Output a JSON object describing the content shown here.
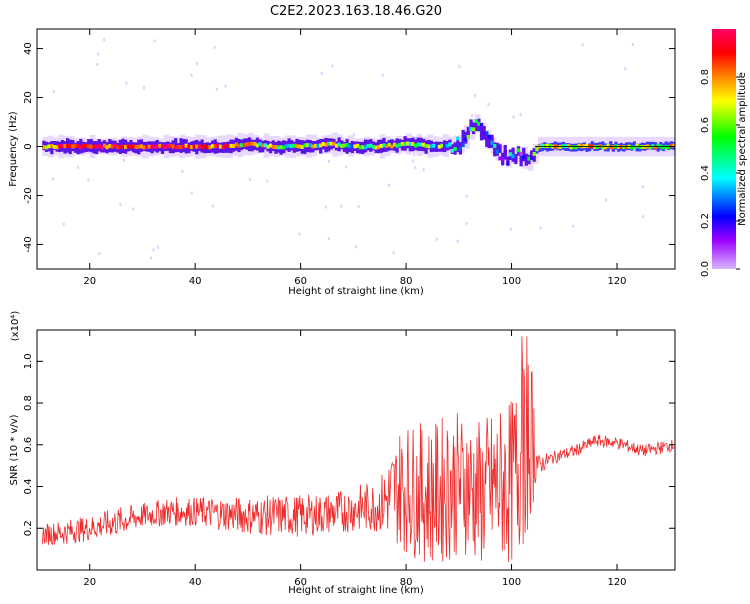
{
  "title": "C2E2.2023.163.18.46.G20",
  "chart_data": [
    {
      "type": "heatmap",
      "title": "C2E2.2023.163.18.46.G20",
      "xlabel": "Height of straight line (km)",
      "ylabel": "Frequency (Hz)",
      "xlim": [
        10,
        131
      ],
      "ylim": [
        -50,
        48
      ],
      "xticks": [
        20,
        40,
        60,
        80,
        100,
        120
      ],
      "yticks": [
        -40,
        -20,
        0,
        20,
        40
      ],
      "colorbar": {
        "label": "Normalized spectral amplitude",
        "range": [
          0,
          1
        ],
        "ticks": [
          0.0,
          0.2,
          0.4,
          0.6,
          0.8
        ],
        "colormap": [
          "#d7b7ff",
          "#9b00ff",
          "#0000ff",
          "#00ffff",
          "#00ff00",
          "#ffff00",
          "#ff8800",
          "#ff0000",
          "#ff0066"
        ]
      },
      "ridge": {
        "x": [
          11,
          15,
          20,
          25,
          30,
          35,
          40,
          45,
          50,
          55,
          60,
          65,
          70,
          75,
          80,
          85,
          90,
          93,
          95,
          97,
          99,
          101,
          103,
          105,
          110,
          120,
          131
        ],
        "freq": [
          0,
          0,
          0,
          0,
          0,
          0,
          0,
          0,
          1,
          0,
          0,
          1,
          0,
          0,
          1,
          0,
          1,
          10,
          3,
          -2,
          -5,
          -3,
          -6,
          0,
          0,
          0,
          0
        ],
        "amplitude": [
          0.6,
          0.9,
          0.92,
          0.9,
          0.88,
          0.9,
          0.85,
          0.8,
          0.6,
          0.55,
          0.55,
          0.55,
          0.5,
          0.6,
          0.55,
          0.5,
          0.45,
          0.35,
          0.3,
          0.3,
          0.35,
          0.3,
          0.3,
          0.6,
          0.6,
          0.65,
          0.6
        ]
      }
    },
    {
      "type": "line",
      "xlabel": "Height of straight line (km)",
      "ylabel": "SNR (10 * v/v)",
      "y_multiplier": "(x10⁴)",
      "xlim": [
        10,
        131
      ],
      "ylim": [
        0,
        1.15
      ],
      "xticks": [
        20,
        40,
        60,
        80,
        100,
        120
      ],
      "yticks": [
        0.2,
        0.4,
        0.6,
        0.8,
        1.0
      ],
      "color": "#ee2c2c",
      "x": [
        11,
        15,
        20,
        25,
        30,
        35,
        40,
        45,
        50,
        55,
        60,
        65,
        70,
        75,
        79,
        82,
        85,
        88,
        91,
        94,
        97,
        100,
        102,
        103,
        104,
        105,
        108,
        112,
        116,
        120,
        125,
        131
      ],
      "mean": [
        0.17,
        0.18,
        0.2,
        0.23,
        0.26,
        0.28,
        0.28,
        0.27,
        0.26,
        0.26,
        0.26,
        0.27,
        0.29,
        0.31,
        0.4,
        0.38,
        0.36,
        0.4,
        0.42,
        0.36,
        0.4,
        0.42,
        0.55,
        0.6,
        0.65,
        0.5,
        0.54,
        0.57,
        0.62,
        0.61,
        0.57,
        0.6
      ],
      "noise": [
        0.05,
        0.06,
        0.06,
        0.07,
        0.06,
        0.07,
        0.07,
        0.08,
        0.09,
        0.1,
        0.1,
        0.1,
        0.11,
        0.13,
        0.3,
        0.33,
        0.34,
        0.36,
        0.34,
        0.36,
        0.38,
        0.4,
        0.45,
        0.45,
        0.35,
        0.05,
        0.03,
        0.03,
        0.03,
        0.03,
        0.03,
        0.03
      ]
    }
  ]
}
